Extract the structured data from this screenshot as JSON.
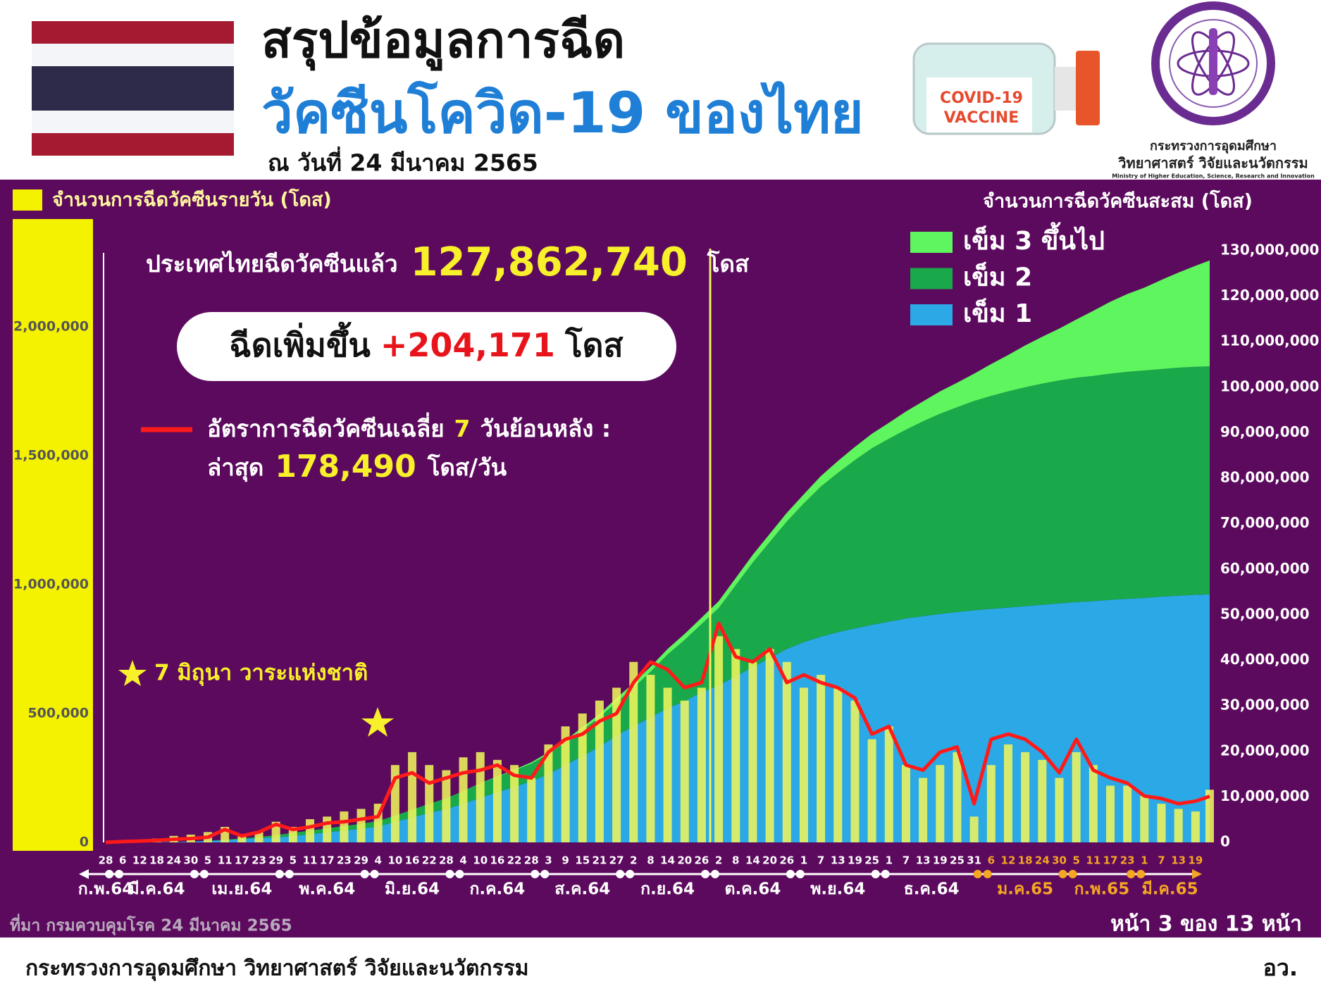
{
  "header": {
    "title_line1": "สรุปข้อมูลการฉีด",
    "title_line2": "วัคซีนโควิด-19 ของไทย",
    "date": "ณ วันที่ 24 มีนาคม 2565",
    "vaccine_label": [
      "COVID-19",
      "VACCINE"
    ],
    "ministry": [
      "กระทรวงการอุดมศึกษา",
      "วิทยาศาสตร์ วิจัยและนวัตกรรม",
      "Ministry of Higher Education, Science, Research and Innovation"
    ]
  },
  "summary": {
    "total_prefix": "ประเทศไทยฉีดวัคซีนแล้ว",
    "total": "127,862,740",
    "total_unit": "โดส",
    "increase_prefix": "ฉีดเพิ่มขึ้น",
    "increase": "+204,171",
    "increase_unit": "โดส",
    "avg_days": "7",
    "avg_suffix": "วันย้อนหลัง :",
    "latest_prefix": "ล่าสุด",
    "latest": "178,490",
    "latest_unit": "โดส/วัน"
  },
  "chart_data": {
    "type": "combo",
    "annotation": "7 มิถุนา วาระแห่งชาติ",
    "y2label": "จำนวนการฉีดวัคซีนสะสม (โดส)",
    "x": [
      "2021-02-28",
      "2021-03-06",
      "2021-03-12",
      "2021-03-18",
      "2021-03-24",
      "2021-03-30",
      "2021-04-05",
      "2021-04-11",
      "2021-04-17",
      "2021-04-23",
      "2021-04-29",
      "2021-05-05",
      "2021-05-11",
      "2021-05-17",
      "2021-05-23",
      "2021-05-29",
      "2021-06-04",
      "2021-06-10",
      "2021-06-16",
      "2021-06-22",
      "2021-06-28",
      "2021-07-04",
      "2021-07-10",
      "2021-07-16",
      "2021-07-22",
      "2021-07-28",
      "2021-08-03",
      "2021-08-09",
      "2021-08-15",
      "2021-08-21",
      "2021-08-27",
      "2021-09-02",
      "2021-09-08",
      "2021-09-14",
      "2021-09-20",
      "2021-09-26",
      "2021-10-02",
      "2021-10-08",
      "2021-10-14",
      "2021-10-20",
      "2021-10-26",
      "2021-11-01",
      "2021-11-07",
      "2021-11-13",
      "2021-11-19",
      "2021-11-25",
      "2021-12-01",
      "2021-12-07",
      "2021-12-13",
      "2021-12-19",
      "2021-12-25",
      "2021-12-31",
      "2022-01-06",
      "2022-01-12",
      "2022-01-18",
      "2022-01-24",
      "2022-01-30",
      "2022-02-05",
      "2022-02-11",
      "2022-02-17",
      "2022-02-23",
      "2022-03-01",
      "2022-03-07",
      "2022-03-13",
      "2022-03-19",
      "2022-03-24"
    ],
    "xlim": [
      "2021-02-28",
      "2022-03-24"
    ],
    "xticks": [
      {
        "value": "2021-02-28",
        "label": "28"
      },
      {
        "value": "2021-03-06",
        "label": "6"
      },
      {
        "value": "2021-03-12",
        "label": "12"
      },
      {
        "value": "2021-03-18",
        "label": "18"
      },
      {
        "value": "2021-03-24",
        "label": "24"
      },
      {
        "value": "2021-03-30",
        "label": "30"
      },
      {
        "value": "2021-04-05",
        "label": "5"
      },
      {
        "value": "2021-04-11",
        "label": "11"
      },
      {
        "value": "2021-04-17",
        "label": "17"
      },
      {
        "value": "2021-04-23",
        "label": "23"
      },
      {
        "value": "2021-04-29",
        "label": "29"
      },
      {
        "value": "2021-05-05",
        "label": "5"
      },
      {
        "value": "2021-05-11",
        "label": "11"
      },
      {
        "value": "2021-05-17",
        "label": "17"
      },
      {
        "value": "2021-05-23",
        "label": "23"
      },
      {
        "value": "2021-05-29",
        "label": "29"
      },
      {
        "value": "2021-06-04",
        "label": "4"
      },
      {
        "value": "2021-06-10",
        "label": "10"
      },
      {
        "value": "2021-06-16",
        "label": "16"
      },
      {
        "value": "2021-06-22",
        "label": "22"
      },
      {
        "value": "2021-06-28",
        "label": "28"
      },
      {
        "value": "2021-07-04",
        "label": "4"
      },
      {
        "value": "2021-07-10",
        "label": "10"
      },
      {
        "value": "2021-07-16",
        "label": "16"
      },
      {
        "value": "2021-07-22",
        "label": "22"
      },
      {
        "value": "2021-07-28",
        "label": "28"
      },
      {
        "value": "2021-08-03",
        "label": "3"
      },
      {
        "value": "2021-08-09",
        "label": "9"
      },
      {
        "value": "2021-08-15",
        "label": "15"
      },
      {
        "value": "2021-08-21",
        "label": "21"
      },
      {
        "value": "2021-08-27",
        "label": "27"
      },
      {
        "value": "2021-09-02",
        "label": "2"
      },
      {
        "value": "2021-09-08",
        "label": "8"
      },
      {
        "value": "2021-09-14",
        "label": "14"
      },
      {
        "value": "2021-09-20",
        "label": "20"
      },
      {
        "value": "2021-09-26",
        "label": "26"
      },
      {
        "value": "2021-10-02",
        "label": "2"
      },
      {
        "value": "2021-10-08",
        "label": "8"
      },
      {
        "value": "2021-10-14",
        "label": "14"
      },
      {
        "value": "2021-10-20",
        "label": "20"
      },
      {
        "value": "2021-10-26",
        "label": "26"
      },
      {
        "value": "2021-11-01",
        "label": "1"
      },
      {
        "value": "2021-11-07",
        "label": "7"
      },
      {
        "value": "2021-11-13",
        "label": "13"
      },
      {
        "value": "2021-11-19",
        "label": "19"
      },
      {
        "value": "2021-11-25",
        "label": "25"
      },
      {
        "value": "2021-12-01",
        "label": "1"
      },
      {
        "value": "2021-12-07",
        "label": "7"
      },
      {
        "value": "2021-12-13",
        "label": "13"
      },
      {
        "value": "2021-12-19",
        "label": "19"
      },
      {
        "value": "2021-12-25",
        "label": "25"
      },
      {
        "value": "2021-12-31",
        "label": "31"
      },
      {
        "value": "2022-01-06",
        "label": "6"
      },
      {
        "value": "2022-01-12",
        "label": "12"
      },
      {
        "value": "2022-01-18",
        "label": "18"
      },
      {
        "value": "2022-01-24",
        "label": "24"
      },
      {
        "value": "2022-01-30",
        "label": "30"
      },
      {
        "value": "2022-02-05",
        "label": "5"
      },
      {
        "value": "2022-02-11",
        "label": "11"
      },
      {
        "value": "2022-02-17",
        "label": "17"
      },
      {
        "value": "2022-02-23",
        "label": "23"
      },
      {
        "value": "2022-03-01",
        "label": "1"
      },
      {
        "value": "2022-03-07",
        "label": "7"
      },
      {
        "value": "2022-03-13",
        "label": "13"
      },
      {
        "value": "2022-03-19",
        "label": "19"
      }
    ],
    "months": [
      "ก.พ.64",
      "มี.ค.64",
      "เม.ย.64",
      "พ.ค.64",
      "มิ.ย.64",
      "ก.ค.64",
      "ส.ค.64",
      "ก.ย.64",
      "ต.ค.64",
      "พ.ย.64",
      "ธ.ค.64",
      "ม.ค.65",
      "ก.พ.65",
      "มี.ค.65"
    ],
    "month_colors": [
      "#ffffff",
      "#ffffff",
      "#ffffff",
      "#ffffff",
      "#ffffff",
      "#ffffff",
      "#ffffff",
      "#ffffff",
      "#ffffff",
      "#ffffff",
      "#ffffff",
      "#f5a623",
      "#f5a623",
      "#f5a623"
    ],
    "ylim": [
      0,
      2295000
    ],
    "yticks": [
      0,
      {
        "value": 500000,
        "label": "500,000"
      },
      {
        "value": 1000000,
        "label": "1,000,000"
      },
      {
        "value": 1500000,
        "label": "1,500,000"
      },
      {
        "value": 2000000,
        "label": "2,000,000"
      }
    ],
    "y2lim": [
      0,
      130000000
    ],
    "y2ticks": [
      0,
      {
        "value": 10000000,
        "label": "10,000,000"
      },
      {
        "value": 20000000,
        "label": "20,000,000"
      },
      {
        "value": 30000000,
        "label": "30,000,000"
      },
      {
        "value": 40000000,
        "label": "40,000,000"
      },
      {
        "value": 50000000,
        "label": "50,000,000"
      },
      {
        "value": 60000000,
        "label": "60,000,000"
      },
      {
        "value": 70000000,
        "label": "70,000,000"
      },
      {
        "value": 80000000,
        "label": "80,000,000"
      },
      {
        "value": 90000000,
        "label": "90,000,000"
      },
      {
        "value": 100000000,
        "label": "100,000,000"
      },
      {
        "value": 110000000,
        "label": "110,000,000"
      },
      {
        "value": 120000000,
        "label": "120,000,000"
      },
      {
        "value": 130000000,
        "label": "130,000,000"
      }
    ],
    "series": [
      {
        "name": "จำนวนการฉีดวัคซีนรายวัน (โดส)",
        "type": "bar",
        "color": "#eef45c",
        "values": [
          0,
          5000,
          10000,
          15000,
          25000,
          30000,
          40000,
          60000,
          30000,
          40000,
          80000,
          60000,
          90000,
          100000,
          120000,
          130000,
          150000,
          300000,
          350000,
          300000,
          280000,
          330000,
          350000,
          320000,
          300000,
          250000,
          380000,
          450000,
          500000,
          550000,
          600000,
          700000,
          650000,
          600000,
          550000,
          600000,
          800000,
          750000,
          700000,
          750000,
          700000,
          600000,
          650000,
          600000,
          550000,
          400000,
          450000,
          300000,
          250000,
          300000,
          350000,
          100000,
          300000,
          380000,
          350000,
          320000,
          250000,
          350000,
          300000,
          220000,
          220000,
          180000,
          150000,
          130000,
          120000,
          204171
        ]
      },
      {
        "name": "เข็ม 1",
        "type": "area",
        "axis": "y2",
        "color": "#2aa9e6",
        "values": [
          0,
          20000,
          40000,
          60000,
          100000,
          150000,
          300000,
          500000,
          700000,
          900000,
          1100000,
          1400000,
          1800000,
          2200000,
          2600000,
          3000000,
          3500000,
          4500000,
          5500000,
          6500000,
          7300000,
          8500000,
          9800000,
          11000000,
          12200000,
          13400000,
          15000000,
          17000000,
          19000000,
          21000000,
          23500000,
          25500000,
          27500000,
          29500000,
          31000000,
          33000000,
          34500000,
          36500000,
          38500000,
          40500000,
          42500000,
          44000000,
          45200000,
          46200000,
          47000000,
          47800000,
          48500000,
          49200000,
          49700000,
          50200000,
          50600000,
          51000000,
          51300000,
          51600000,
          51900000,
          52200000,
          52500000,
          52800000,
          53000000,
          53300000,
          53500000,
          53700000,
          54000000,
          54200000,
          54400000,
          54500000
        ]
      },
      {
        "name": "เข็ม 2",
        "type": "area",
        "axis": "y2",
        "color": "#19a84a",
        "values": [
          0,
          0,
          0,
          0,
          10000,
          20000,
          50000,
          100000,
          200000,
          300000,
          500000,
          700000,
          800000,
          900000,
          1000000,
          1100000,
          1200000,
          1400000,
          1700000,
          2000000,
          2400000,
          2800000,
          3100000,
          3400000,
          3600000,
          3900000,
          4400000,
          5000000,
          5700000,
          6500000,
          7300000,
          8500000,
          10000000,
          11800000,
          13500000,
          15000000,
          17000000,
          20000000,
          23000000,
          25500000,
          28000000,
          30500000,
          33000000,
          35000000,
          37000000,
          38800000,
          40200000,
          41500000,
          42800000,
          44000000,
          45000000,
          46000000,
          46800000,
          47500000,
          48100000,
          48600000,
          49000000,
          49300000,
          49500000,
          49700000,
          49900000,
          50000000,
          50000000,
          50100000,
          50100000,
          50100000
        ]
      },
      {
        "name": "เข็ม 3 ขึ้นไป",
        "type": "area",
        "axis": "y2",
        "color": "#5ef55e",
        "values": [
          0,
          0,
          0,
          0,
          0,
          0,
          0,
          0,
          0,
          0,
          0,
          0,
          0,
          0,
          0,
          0,
          0,
          0,
          0,
          0,
          0,
          0,
          100000,
          100000,
          200000,
          300000,
          400000,
          500000,
          600000,
          700000,
          900000,
          1000000,
          1100000,
          1200000,
          1300000,
          1400000,
          1500000,
          1600000,
          1700000,
          1800000,
          1900000,
          2000000,
          2300000,
          2600000,
          2900000,
          3200000,
          3500000,
          4000000,
          4400000,
          4900000,
          5400000,
          6000000,
          7000000,
          8000000,
          9200000,
          10300000,
          11400000,
          12800000,
          14300000,
          15800000,
          17100000,
          18200000,
          19600000,
          20900000,
          22200000,
          23262740
        ]
      },
      {
        "name": "อัตราการฉีดวัคซีนเฉลี่ย",
        "type": "line",
        "color": "#ff1a1a",
        "values": [
          0,
          3000,
          5000,
          8000,
          12000,
          15000,
          20000,
          50000,
          25000,
          40000,
          70000,
          50000,
          60000,
          75000,
          80000,
          90000,
          100000,
          250000,
          270000,
          230000,
          250000,
          270000,
          280000,
          300000,
          260000,
          250000,
          350000,
          400000,
          420000,
          470000,
          500000,
          620000,
          700000,
          670000,
          600000,
          620000,
          850000,
          720000,
          700000,
          750000,
          620000,
          650000,
          620000,
          600000,
          560000,
          420000,
          450000,
          300000,
          280000,
          350000,
          370000,
          150000,
          400000,
          420000,
          400000,
          350000,
          270000,
          400000,
          280000,
          250000,
          230000,
          180000,
          170000,
          150000,
          160000,
          178490
        ]
      }
    ]
  },
  "footer": {
    "source": "ที่มา กรมควบคุมโรค 24 มีนาคม 2565",
    "page": "หน้า 3 ของ 13 หน้า",
    "ministry": "กระทรวงการอุดมศึกษา วิทยาศาสตร์ วิจัยและนวัตกรรม",
    "short": "อว."
  }
}
